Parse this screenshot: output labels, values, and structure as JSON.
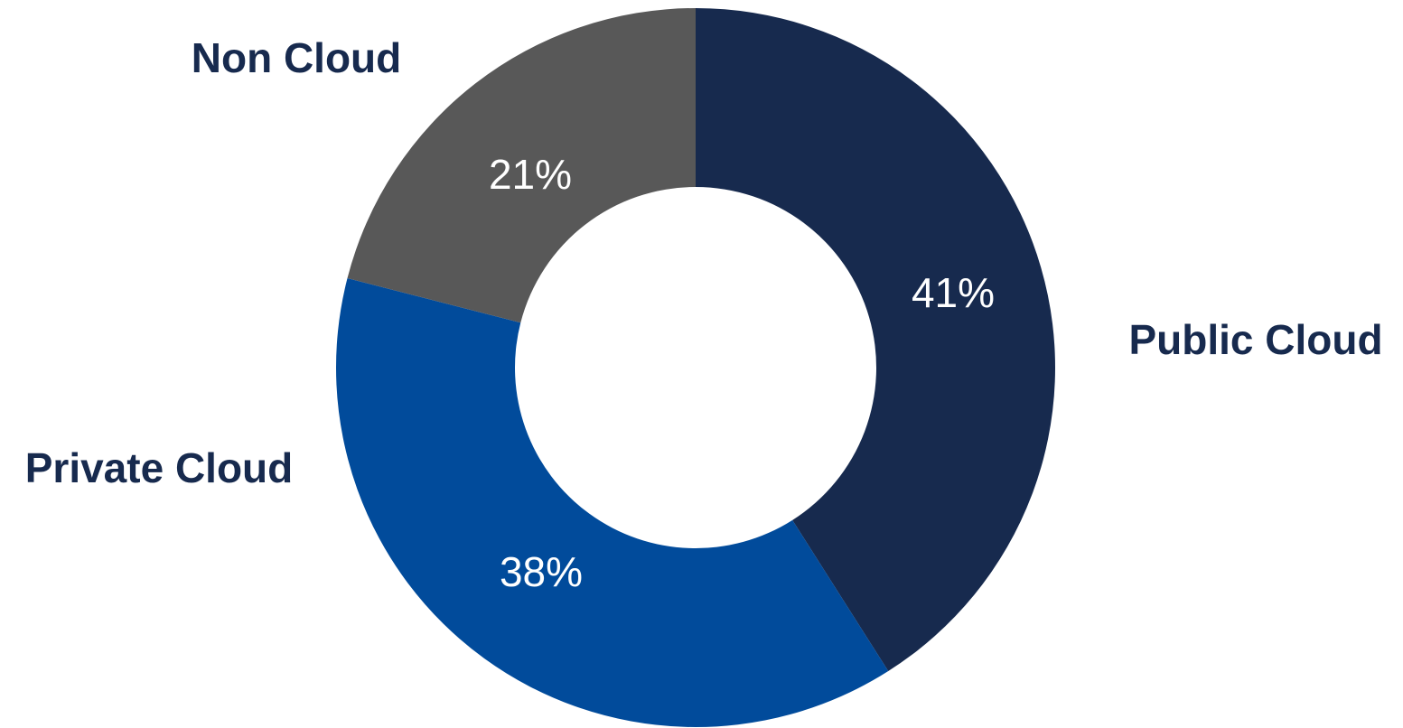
{
  "chart_data": {
    "type": "pie",
    "donut": true,
    "slices": [
      {
        "label": "Public Cloud",
        "value": 41,
        "value_label": "41%",
        "color": "#172A4E"
      },
      {
        "label": "Private Cloud",
        "value": 38,
        "value_label": "38%",
        "color": "#014B9B"
      },
      {
        "label": "Non Cloud",
        "value": 21,
        "value_label": "21%",
        "color": "#585858"
      }
    ],
    "start": "12 o'clock",
    "direction": "clockwise",
    "label_color": "#172A4E",
    "value_label_color": "#FFFFFF",
    "legend": "none"
  }
}
